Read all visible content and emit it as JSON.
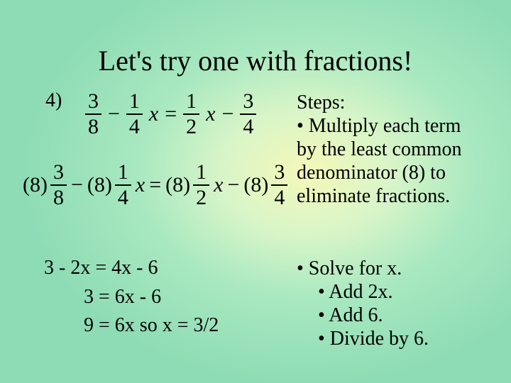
{
  "title": "Let's try one with fractions!",
  "problem_number": "4)",
  "eq1": {
    "t1_num": "3",
    "t1_den": "8",
    "minus1": "−",
    "t2_num": "1",
    "t2_den": "4",
    "t2_var": "x",
    "eq": "=",
    "t3_num": "1",
    "t3_den": "2",
    "t3_var": "x",
    "minus2": "−",
    "t4_num": "3",
    "t4_den": "4"
  },
  "eq2": {
    "c1": "(8)",
    "t1_num": "3",
    "t1_den": "8",
    "minus1": "−",
    "c2": "(8)",
    "t2_num": "1",
    "t2_den": "4",
    "t2_var": "x",
    "eq": "=",
    "c3": "(8)",
    "t3_num": "1",
    "t3_den": "2",
    "t3_var": "x",
    "minus2": "−",
    "c4": "(8)",
    "t4_num": "3",
    "t4_den": "4"
  },
  "steps": {
    "heading": "Steps:",
    "line1": "• Multiply each term",
    "line2": "by the least common",
    "line3": "denominator (8) to",
    "line4": "eliminate fractions."
  },
  "solve": {
    "line1": "• Solve for x.",
    "line2": "• Add 2x.",
    "line3": "• Add 6.",
    "line4": "• Divide by 6."
  },
  "work": {
    "line1": "3 - 2x = 4x - 6",
    "line2": "3 = 6x - 6",
    "line3": "9 = 6x   so x = 3/2"
  }
}
